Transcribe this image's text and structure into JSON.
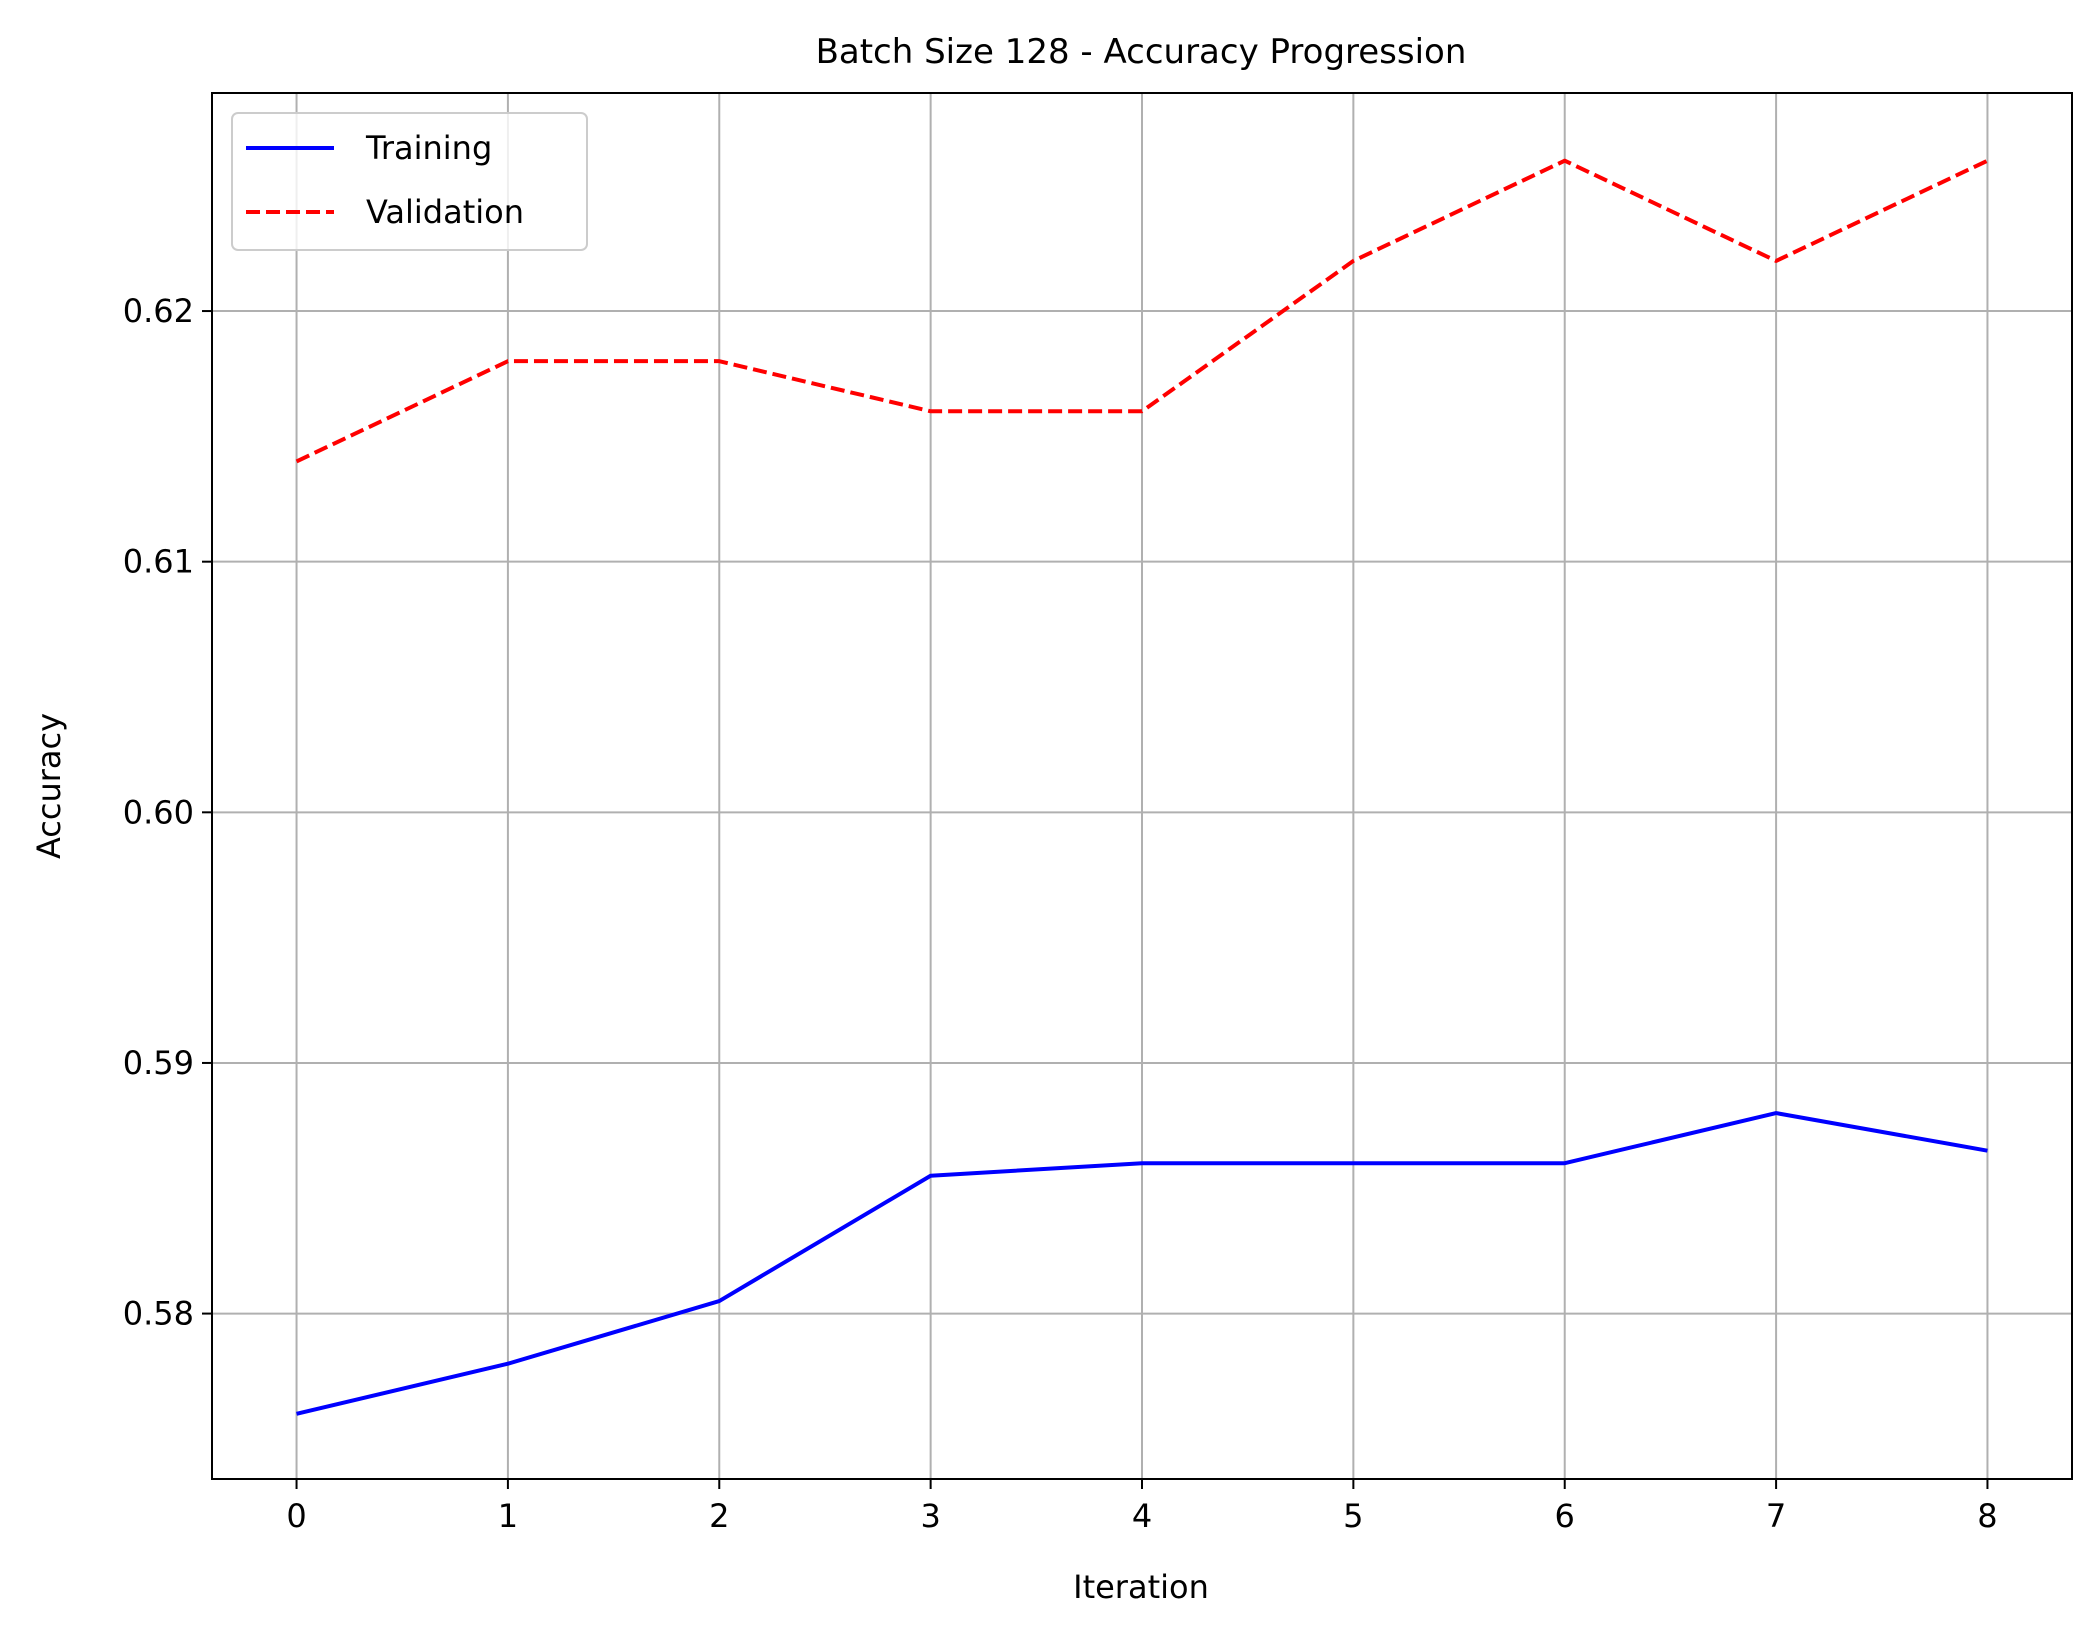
{
  "chart_data": {
    "type": "line",
    "title": "Batch Size 128 - Accuracy Progression",
    "xlabel": "Iteration",
    "ylabel": "Accuracy",
    "x": [
      0,
      1,
      2,
      3,
      4,
      5,
      6,
      7,
      8
    ],
    "xticks": [
      "0",
      "1",
      "2",
      "3",
      "4",
      "5",
      "6",
      "7",
      "8"
    ],
    "yticks": [
      "0.58",
      "0.59",
      "0.60",
      "0.61",
      "0.62"
    ],
    "xlim": [
      -0.4,
      8.4
    ],
    "ylim": [
      0.5734,
      0.6287
    ],
    "grid": true,
    "legend_position": "upper-left",
    "series": [
      {
        "name": "Training",
        "color": "#0000ff",
        "line_style": "solid",
        "values": [
          0.576,
          0.578,
          0.5805,
          0.5855,
          0.586,
          0.586,
          0.586,
          0.588,
          0.5865
        ]
      },
      {
        "name": "Validation",
        "color": "#ff0000",
        "line_style": "dashed",
        "values": [
          0.614,
          0.618,
          0.618,
          0.616,
          0.616,
          0.622,
          0.626,
          0.622,
          0.626
        ]
      }
    ]
  }
}
